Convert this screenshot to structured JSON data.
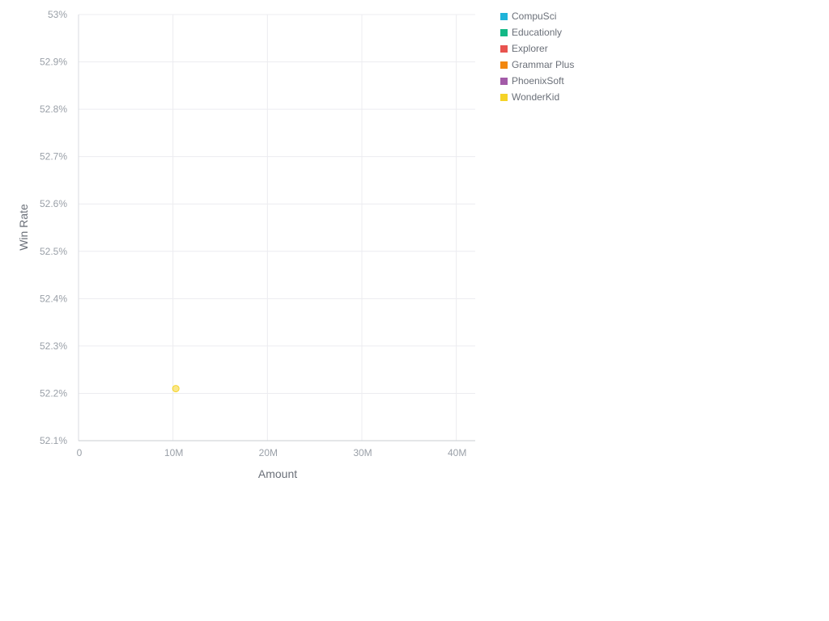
{
  "chart_data": {
    "type": "scatter",
    "xlabel": "Amount",
    "ylabel": "Win Rate",
    "xlim": [
      0,
      42000000
    ],
    "ylim": [
      52.1,
      53.0
    ],
    "x_ticks": [
      {
        "value": 0,
        "label": "0"
      },
      {
        "value": 10000000,
        "label": "10M"
      },
      {
        "value": 20000000,
        "label": "20M"
      },
      {
        "value": 30000000,
        "label": "30M"
      },
      {
        "value": 40000000,
        "label": "40M"
      }
    ],
    "y_ticks": [
      {
        "value": 52.1,
        "label": "52.1%"
      },
      {
        "value": 52.2,
        "label": "52.2%"
      },
      {
        "value": 52.3,
        "label": "52.3%"
      },
      {
        "value": 52.4,
        "label": "52.4%"
      },
      {
        "value": 52.5,
        "label": "52.5%"
      },
      {
        "value": 52.6,
        "label": "52.6%"
      },
      {
        "value": 52.7,
        "label": "52.7%"
      },
      {
        "value": 52.8,
        "label": "52.8%"
      },
      {
        "value": 52.9,
        "label": "52.9%"
      },
      {
        "value": 53.0,
        "label": "53%"
      }
    ],
    "grid": true,
    "legend_position": "right",
    "series": [
      {
        "name": "CompuSci",
        "color": "#1fb3d9",
        "points": []
      },
      {
        "name": "Educationly",
        "color": "#13b886",
        "points": []
      },
      {
        "name": "Explorer",
        "color": "#e8534f",
        "points": []
      },
      {
        "name": "Grammar Plus",
        "color": "#f2870f",
        "points": []
      },
      {
        "name": "PhoenixSoft",
        "color": "#a35ba8",
        "points": []
      },
      {
        "name": "WonderKid",
        "color": "#f5d327",
        "points": [
          {
            "x": 10300000,
            "y": 52.21
          }
        ]
      }
    ]
  }
}
